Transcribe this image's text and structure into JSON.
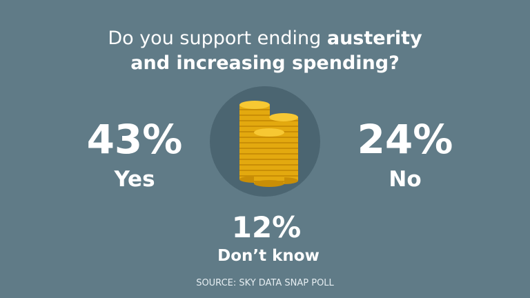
{
  "title": {
    "lead": "Do you support ending",
    "emphasis": "austerity",
    "second_line": "and increasing spending?"
  },
  "results": [
    {
      "value": "43%",
      "label": "Yes"
    },
    {
      "value": "24%",
      "label": "No"
    },
    {
      "value": "12%",
      "label": "Don’t know"
    }
  ],
  "source": "SOURCE: SKY DATA SNAP POLL"
}
